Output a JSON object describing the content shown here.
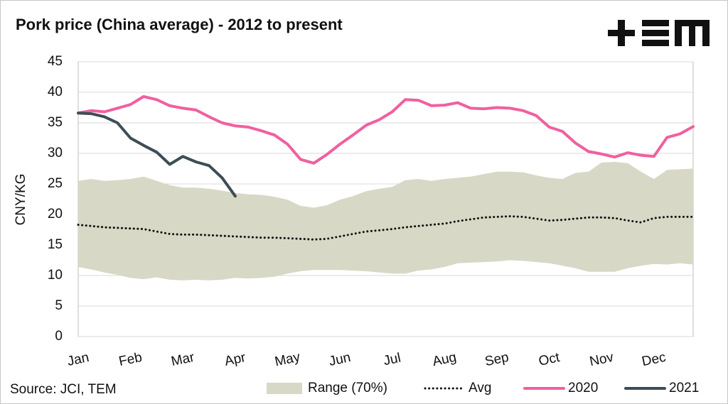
{
  "chart_data": {
    "type": "line",
    "title": "Pork price (China average) - 2012 to present",
    "y_label": "CNY/KG",
    "source": "Source: JCI, TEM",
    "categories": [
      "Jan",
      null,
      null,
      null,
      "Feb",
      null,
      null,
      null,
      "Mar",
      null,
      null,
      null,
      "Apr",
      null,
      null,
      null,
      "May",
      null,
      null,
      null,
      "Jun",
      null,
      null,
      null,
      "Jul",
      null,
      null,
      null,
      "Aug",
      null,
      null,
      null,
      "Sep",
      null,
      null,
      null,
      "Oct",
      null,
      null,
      null,
      "Nov",
      null,
      null,
      null,
      "Dec",
      null,
      null,
      null
    ],
    "ylim": [
      0,
      45
    ],
    "yticks": [
      0,
      5,
      10,
      15,
      20,
      25,
      30,
      35,
      40,
      45
    ],
    "grid": true,
    "series": [
      {
        "name": "Range (70%)",
        "color": "#d8d8c6",
        "style": "band",
        "high": [
          25.5,
          25.8,
          25.5,
          25.6,
          25.8,
          26.2,
          25.5,
          24.8,
          24.4,
          24.4,
          24.2,
          23.9,
          23.5,
          23.3,
          23.2,
          22.9,
          22.4,
          21.4,
          21.1,
          21.5,
          22.4,
          23.0,
          23.8,
          24.2,
          24.5,
          25.6,
          25.8,
          25.5,
          25.8,
          26.0,
          26.2,
          26.6,
          27.0,
          27.0,
          26.9,
          26.4,
          26.0,
          25.8,
          26.8,
          27.0,
          28.5,
          28.6,
          28.4,
          27.0,
          25.8,
          27.3,
          27.4,
          27.5
        ],
        "low": [
          11.4,
          11.0,
          10.5,
          10.1,
          9.6,
          9.4,
          9.7,
          9.3,
          9.2,
          9.3,
          9.2,
          9.3,
          9.6,
          9.5,
          9.6,
          9.8,
          10.3,
          10.7,
          10.9,
          10.9,
          10.9,
          10.8,
          10.7,
          10.5,
          10.3,
          10.3,
          10.8,
          11.0,
          11.4,
          12.0,
          12.1,
          12.2,
          12.3,
          12.5,
          12.4,
          12.2,
          12.0,
          11.6,
          11.2,
          10.6,
          10.6,
          10.6,
          11.2,
          11.6,
          11.9,
          11.8,
          12.0,
          11.8
        ]
      },
      {
        "name": "Avg",
        "color": "#111111",
        "style": "dotted",
        "values": [
          18.3,
          18.1,
          17.9,
          17.8,
          17.7,
          17.6,
          17.2,
          16.8,
          16.7,
          16.7,
          16.6,
          16.5,
          16.4,
          16.3,
          16.2,
          16.2,
          16.1,
          16.0,
          15.9,
          16.0,
          16.4,
          16.8,
          17.2,
          17.4,
          17.6,
          17.9,
          18.1,
          18.3,
          18.5,
          18.9,
          19.2,
          19.5,
          19.6,
          19.7,
          19.6,
          19.3,
          19.0,
          19.1,
          19.3,
          19.5,
          19.5,
          19.4,
          19.0,
          18.7,
          19.4,
          19.6,
          19.6,
          19.6
        ]
      },
      {
        "name": "2020",
        "color": "#f0609e",
        "style": "solid",
        "values": [
          36.6,
          37.0,
          36.8,
          37.4,
          38.0,
          39.3,
          38.8,
          37.8,
          37.4,
          37.1,
          36.0,
          35.0,
          34.5,
          34.3,
          33.7,
          33.0,
          31.5,
          29.0,
          28.4,
          29.8,
          31.5,
          33.0,
          34.6,
          35.5,
          36.8,
          38.8,
          38.7,
          37.8,
          37.9,
          38.3,
          37.4,
          37.3,
          37.5,
          37.4,
          37.0,
          36.2,
          34.3,
          33.6,
          31.7,
          30.3,
          29.9,
          29.4,
          30.1,
          29.7,
          29.5,
          32.6,
          33.2,
          34.4
        ]
      },
      {
        "name": "2021",
        "color": "#3e4d55",
        "style": "solid",
        "values": [
          36.6,
          36.5,
          36.0,
          35.0,
          32.5,
          31.3,
          30.2,
          28.2,
          29.5,
          28.6,
          28.0,
          26.0,
          23.0,
          null,
          null,
          null,
          null,
          null,
          null,
          null,
          null,
          null,
          null,
          null,
          null,
          null,
          null,
          null,
          null,
          null,
          null,
          null,
          null,
          null,
          null,
          null,
          null,
          null,
          null,
          null,
          null,
          null,
          null,
          null,
          null,
          null,
          null,
          null
        ]
      }
    ]
  }
}
